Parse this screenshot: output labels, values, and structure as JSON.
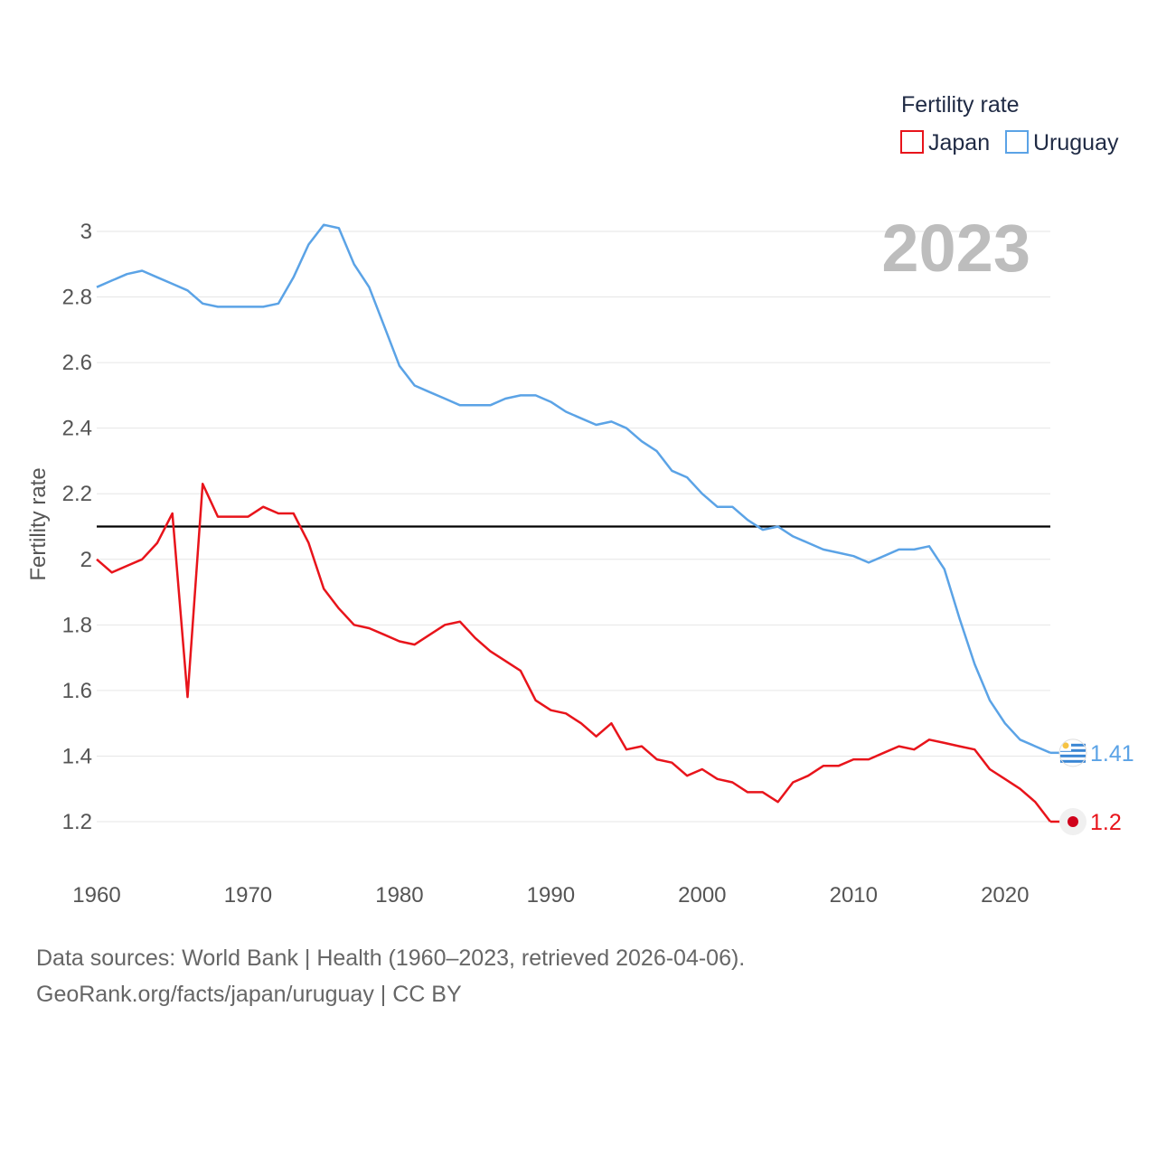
{
  "chart_data": {
    "type": "line",
    "legend_title": "Fertility rate",
    "ylabel": "Fertility rate",
    "xlabel": "",
    "year_label": "2023",
    "xlim": [
      1960,
      2023
    ],
    "ylim": [
      1.2,
      3.0
    ],
    "x_ticks": [
      1960,
      1970,
      1980,
      1990,
      2000,
      2010,
      2020
    ],
    "y_ticks": [
      1.2,
      1.4,
      1.6,
      1.8,
      2,
      2.2,
      2.4,
      2.6,
      2.8,
      3
    ],
    "reference_line": 2.1,
    "legend_position": "top-right",
    "x": [
      1960,
      1961,
      1962,
      1963,
      1964,
      1965,
      1966,
      1967,
      1968,
      1969,
      1970,
      1971,
      1972,
      1973,
      1974,
      1975,
      1976,
      1977,
      1978,
      1979,
      1980,
      1981,
      1982,
      1983,
      1984,
      1985,
      1986,
      1987,
      1988,
      1989,
      1990,
      1991,
      1992,
      1993,
      1994,
      1995,
      1996,
      1997,
      1998,
      1999,
      2000,
      2001,
      2002,
      2003,
      2004,
      2005,
      2006,
      2007,
      2008,
      2009,
      2010,
      2011,
      2012,
      2013,
      2014,
      2015,
      2016,
      2017,
      2018,
      2019,
      2020,
      2021,
      2022,
      2023
    ],
    "series": [
      {
        "name": "Japan",
        "color": "#e8141b",
        "end_label": "1.2",
        "values": [
          2.0,
          1.96,
          1.98,
          2.0,
          2.05,
          2.14,
          1.58,
          2.23,
          2.13,
          2.13,
          2.13,
          2.16,
          2.14,
          2.14,
          2.05,
          1.91,
          1.85,
          1.8,
          1.79,
          1.77,
          1.75,
          1.74,
          1.77,
          1.8,
          1.81,
          1.76,
          1.72,
          1.69,
          1.66,
          1.57,
          1.54,
          1.53,
          1.5,
          1.46,
          1.5,
          1.42,
          1.43,
          1.39,
          1.38,
          1.34,
          1.36,
          1.33,
          1.32,
          1.29,
          1.29,
          1.26,
          1.32,
          1.34,
          1.37,
          1.37,
          1.39,
          1.39,
          1.41,
          1.43,
          1.42,
          1.45,
          1.44,
          1.43,
          1.42,
          1.36,
          1.33,
          1.3,
          1.26,
          1.2
        ]
      },
      {
        "name": "Uruguay",
        "color": "#5ba3e6",
        "end_label": "1.41",
        "values": [
          2.83,
          2.85,
          2.87,
          2.88,
          2.86,
          2.84,
          2.82,
          2.78,
          2.77,
          2.77,
          2.77,
          2.77,
          2.78,
          2.86,
          2.96,
          3.02,
          3.01,
          2.9,
          2.83,
          2.71,
          2.59,
          2.53,
          2.51,
          2.49,
          2.47,
          2.47,
          2.47,
          2.49,
          2.5,
          2.5,
          2.48,
          2.45,
          2.43,
          2.41,
          2.42,
          2.4,
          2.36,
          2.33,
          2.27,
          2.25,
          2.2,
          2.16,
          2.16,
          2.12,
          2.09,
          2.1,
          2.07,
          2.05,
          2.03,
          2.02,
          2.01,
          1.99,
          2.01,
          2.03,
          2.03,
          2.04,
          1.97,
          1.82,
          1.68,
          1.57,
          1.5,
          1.45,
          1.43,
          1.41
        ]
      }
    ]
  },
  "source": {
    "line1": "Data sources: World Bank | Health (1960–2023, retrieved 2026-04-06).",
    "line2": "GeoRank.org/facts/japan/uruguay | CC BY"
  }
}
